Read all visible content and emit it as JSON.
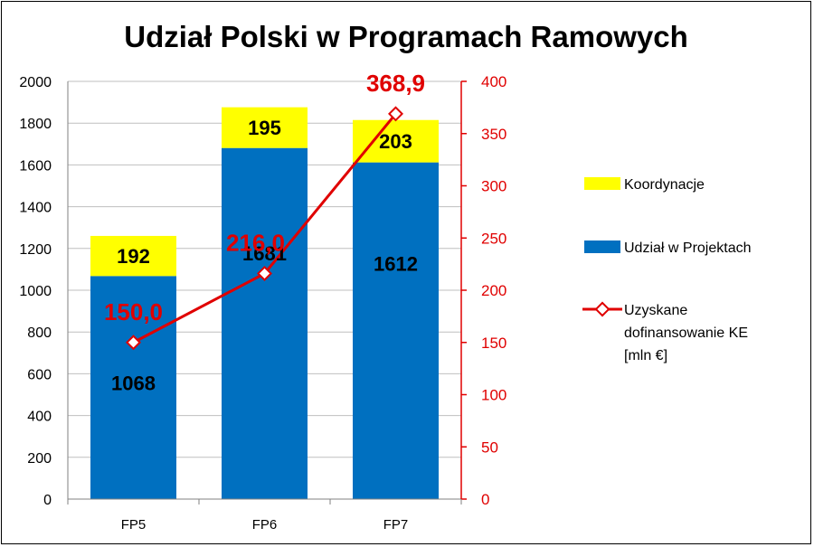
{
  "chart_data": {
    "type": "bar",
    "title": "Udział Polski w Programach Ramowych",
    "categories": [
      "FP5",
      "FP6",
      "FP7"
    ],
    "stacked": true,
    "series": [
      {
        "name": "Udział w Projektach",
        "values": [
          1068,
          1681,
          1612
        ],
        "color": "#0070c0",
        "axis": "left"
      },
      {
        "name": "Koordynacje",
        "values": [
          192,
          195,
          203
        ],
        "color": "#ffff00",
        "axis": "left"
      },
      {
        "name": "Uzyskane dofinansowanie KE [mln €]",
        "type": "line",
        "values": [
          150.0,
          216.0,
          368.9
        ],
        "value_labels": [
          "150,0",
          "216,0",
          "368,9"
        ],
        "color": "#e00000",
        "axis": "right"
      }
    ],
    "ylim_left": [
      0,
      2000
    ],
    "yticks_left": [
      0,
      200,
      400,
      600,
      800,
      1000,
      1200,
      1400,
      1600,
      1800,
      2000
    ],
    "ylim_right": [
      0,
      400
    ],
    "yticks_right": [
      0,
      50,
      100,
      150,
      200,
      250,
      300,
      350,
      400
    ],
    "legend_position": "right",
    "legend_items": [
      {
        "label_lines": [
          "Koordynacje"
        ],
        "color": "#ffff00",
        "kind": "box"
      },
      {
        "label_lines": [
          "Udział w Projektach"
        ],
        "color": "#0070c0",
        "kind": "box"
      },
      {
        "label_lines": [
          "Uzyskane",
          "dofinansowanie KE",
          "[mln €]"
        ],
        "color": "#e00000",
        "kind": "line"
      }
    ],
    "grid": true
  }
}
